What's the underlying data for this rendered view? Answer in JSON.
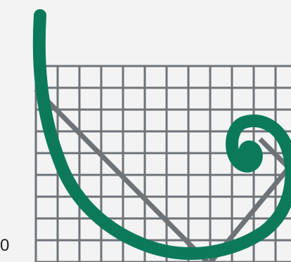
{
  "label": {
    "text": "0"
  },
  "colors": {
    "background": "#f3f3f3",
    "grid": "#6e7378",
    "v_line": "#6e7378",
    "spiral": "#0c7a5a",
    "label": "#222222"
  },
  "icons": {
    "spiral": "hand-drawn-spiral-stroke",
    "grid": "square-grid",
    "v_shape": "v-line"
  }
}
